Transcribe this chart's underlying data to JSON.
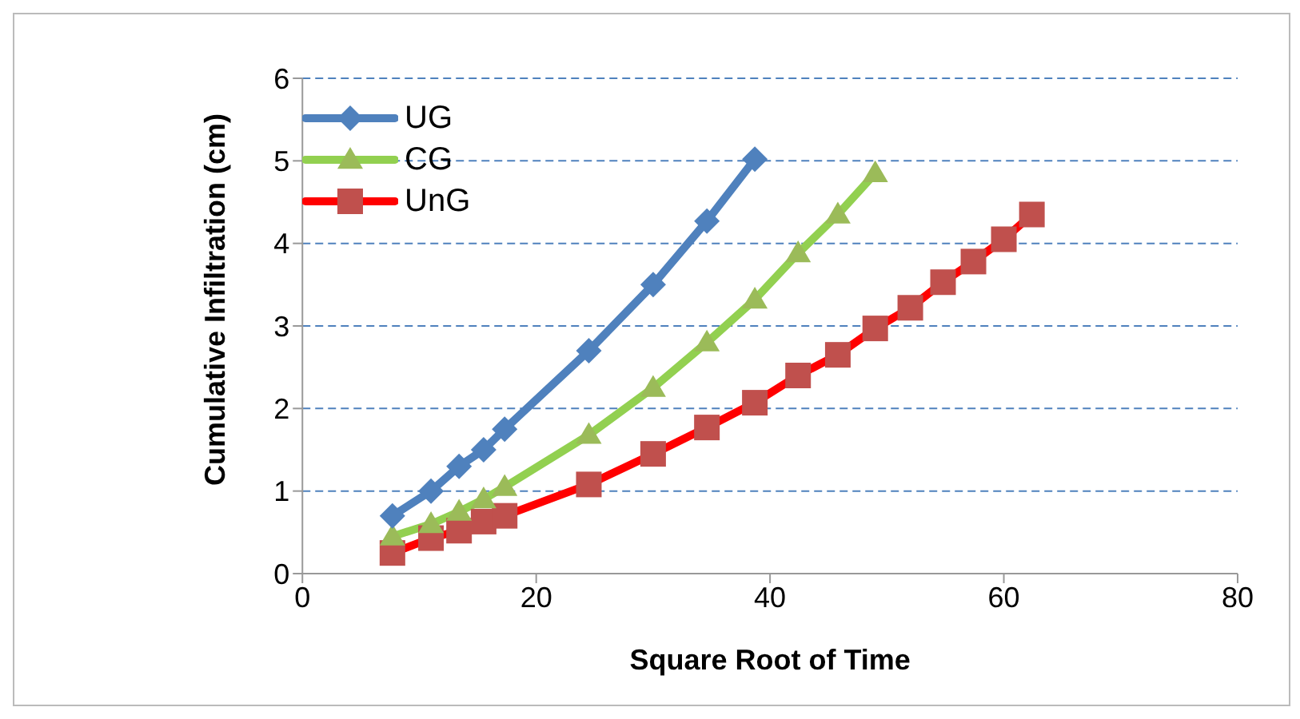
{
  "chart_data": {
    "type": "line",
    "xlabel": "Square Root of Time",
    "ylabel": "Cumulative Infiltration (cm)",
    "xlim": [
      0,
      80
    ],
    "xticks": [
      0,
      20,
      40,
      60,
      80
    ],
    "ylim": [
      0,
      6
    ],
    "yticks": [
      0,
      1,
      2,
      3,
      4,
      5,
      6
    ],
    "grid": "y",
    "legend": "top left",
    "line_style": "solid",
    "series": [
      {
        "name": "UG",
        "color": "#4f81bd",
        "marker": "diamond",
        "x": [
          7.7,
          11,
          13.4,
          15.5,
          17.3,
          24.5,
          30,
          34.6,
          38.7
        ],
        "values": [
          0.7,
          1.0,
          1.3,
          1.5,
          1.75,
          2.7,
          3.5,
          4.27,
          5.02
        ]
      },
      {
        "name": "CG",
        "color": "#9bbb59",
        "marker": "triangle",
        "x": [
          7.7,
          11,
          13.4,
          15.5,
          17.3,
          24.5,
          30,
          34.6,
          38.7,
          42.4,
          45.8,
          49
        ],
        "values": [
          0.45,
          0.6,
          0.75,
          0.9,
          1.05,
          1.68,
          2.25,
          2.8,
          3.32,
          3.88,
          4.35,
          4.85
        ]
      },
      {
        "name": "UnG",
        "color": "#c0504d",
        "marker": "square",
        "x": [
          7.7,
          11,
          13.4,
          15.5,
          17.3,
          24.5,
          30,
          34.6,
          38.7,
          42.4,
          45.8,
          49,
          52,
          54.8,
          57.4,
          60,
          62.4
        ],
        "values": [
          0.25,
          0.43,
          0.52,
          0.63,
          0.7,
          1.08,
          1.45,
          1.77,
          2.07,
          2.4,
          2.65,
          2.97,
          3.22,
          3.53,
          3.78,
          4.05,
          4.35
        ]
      }
    ]
  }
}
